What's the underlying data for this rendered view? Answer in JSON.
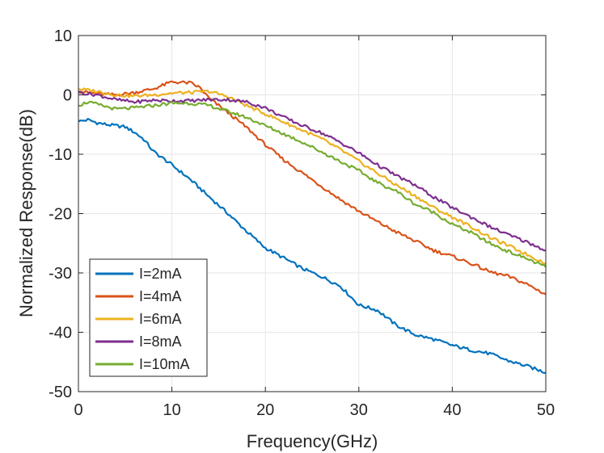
{
  "chart_data": {
    "type": "line",
    "title": "",
    "xlabel": "Frequency(GHz)",
    "ylabel": "Normalized Response(dB)",
    "xlim": [
      0,
      50
    ],
    "ylim": [
      -50,
      10
    ],
    "xticks": [
      0,
      10,
      20,
      30,
      40,
      50
    ],
    "yticks": [
      10,
      0,
      -10,
      -20,
      -30,
      -40,
      -50
    ],
    "xtick_labels": [
      "0",
      "10",
      "20",
      "30",
      "40",
      "50"
    ],
    "ytick_labels": [
      "10",
      "0",
      "-10",
      "-20",
      "-30",
      "-40",
      "-50"
    ],
    "grid": true,
    "legend_position": "bottom-left",
    "series": [
      {
        "name": "I=2mA",
        "color": "#0072BD",
        "x": [
          0,
          1,
          2,
          3,
          4,
          5,
          6,
          7,
          8,
          10,
          12,
          14,
          16,
          18,
          20,
          22,
          24,
          26,
          28,
          30,
          32,
          34,
          36,
          38,
          40,
          42,
          44,
          46,
          48,
          50
        ],
        "y": [
          -4.5,
          -4.2,
          -4.7,
          -5.0,
          -5.2,
          -5.4,
          -6.3,
          -7.5,
          -9.5,
          -11.8,
          -14.3,
          -17.2,
          -20.0,
          -23.0,
          -25.8,
          -27.5,
          -29.3,
          -30.6,
          -32.2,
          -35.4,
          -36.3,
          -38.8,
          -40.4,
          -41.2,
          -42.2,
          -43.0,
          -43.6,
          -44.8,
          -45.7,
          -46.8
        ]
      },
      {
        "name": "I=4mA",
        "color": "#D95319",
        "x": [
          0,
          2,
          4,
          6,
          8,
          10,
          12,
          13,
          14,
          16,
          18,
          20,
          22,
          24,
          26,
          28,
          30,
          32,
          34,
          36,
          38,
          40,
          42,
          44,
          46,
          48,
          50
        ],
        "y": [
          0.6,
          0.2,
          0.0,
          0.4,
          1.0,
          2.2,
          2.0,
          1.2,
          -0.6,
          -3.0,
          -5.5,
          -8.4,
          -11.0,
          -13.2,
          -15.4,
          -17.6,
          -19.6,
          -21.4,
          -23.1,
          -24.6,
          -26.2,
          -27.2,
          -28.4,
          -29.8,
          -30.6,
          -31.9,
          -33.6
        ]
      },
      {
        "name": "I=6mA",
        "color": "#EDB120",
        "x": [
          0,
          2,
          4,
          6,
          8,
          10,
          12,
          14,
          16,
          18,
          20,
          22,
          24,
          26,
          28,
          30,
          32,
          34,
          36,
          38,
          40,
          42,
          44,
          46,
          48,
          50
        ],
        "y": [
          1.0,
          0.6,
          0.0,
          -0.2,
          0.0,
          0.3,
          0.4,
          0.6,
          -0.3,
          -1.8,
          -3.2,
          -4.6,
          -6.0,
          -7.4,
          -9.2,
          -11.2,
          -13.2,
          -15.2,
          -17.0,
          -19.0,
          -20.6,
          -22.2,
          -24.0,
          -25.4,
          -26.9,
          -28.4
        ]
      },
      {
        "name": "I=8mA",
        "color": "#7E2F8E",
        "x": [
          0,
          2,
          4,
          6,
          8,
          10,
          12,
          14,
          16,
          18,
          20,
          22,
          24,
          26,
          28,
          30,
          32,
          34,
          36,
          38,
          40,
          42,
          44,
          46,
          48,
          50
        ],
        "y": [
          0.4,
          0.0,
          -0.8,
          -1.2,
          -0.9,
          -1.0,
          -1.0,
          -0.8,
          -0.8,
          -1.2,
          -2.2,
          -3.8,
          -5.2,
          -6.4,
          -8.0,
          -9.8,
          -11.8,
          -13.6,
          -15.2,
          -17.2,
          -19.0,
          -20.6,
          -22.2,
          -23.6,
          -24.8,
          -26.2
        ]
      },
      {
        "name": "I=10mA",
        "color": "#77AC30",
        "x": [
          0,
          1,
          2,
          4,
          6,
          8,
          10,
          12,
          14,
          16,
          18,
          20,
          22,
          24,
          26,
          28,
          30,
          32,
          34,
          36,
          38,
          40,
          42,
          44,
          46,
          48,
          50
        ],
        "y": [
          -1.8,
          -1.2,
          -1.6,
          -2.4,
          -2.2,
          -1.8,
          -1.4,
          -1.4,
          -1.8,
          -2.8,
          -3.8,
          -5.2,
          -6.6,
          -8.0,
          -9.6,
          -11.2,
          -12.8,
          -14.8,
          -16.2,
          -18.4,
          -19.8,
          -21.8,
          -23.2,
          -25.0,
          -26.4,
          -27.6,
          -29.0
        ]
      }
    ]
  }
}
